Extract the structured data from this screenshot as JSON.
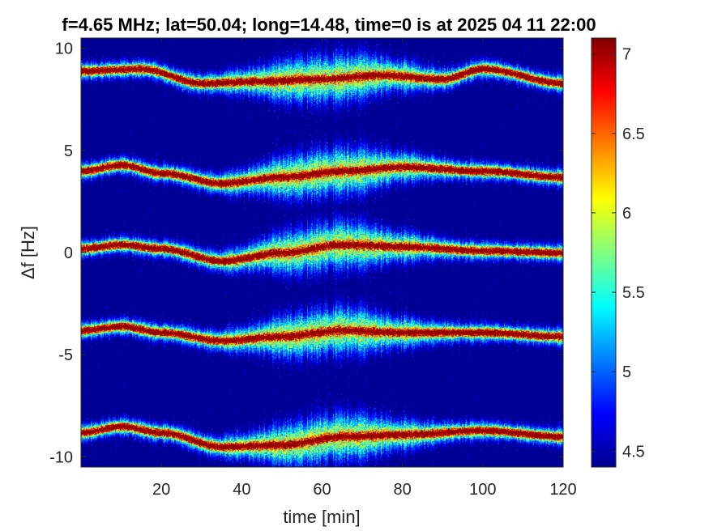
{
  "chart_data": {
    "type": "heatmap",
    "title": "f=4.65 MHz;  lat=50.04; long=14.48, time=0 is at 2025 04 11 22:00",
    "xlabel": "time [min]",
    "ylabel": "Δf [Hz]",
    "xlim": [
      0,
      120
    ],
    "ylim": [
      -10.5,
      10.5
    ],
    "xticks": [
      20,
      40,
      60,
      80,
      100,
      120
    ],
    "xtick_labels": [
      "20",
      "40",
      "60",
      "80",
      "100",
      "120"
    ],
    "yticks": [
      10,
      5,
      0,
      -5,
      -10
    ],
    "ytick_labels": [
      "10",
      "5",
      "0",
      "-5",
      "-10"
    ],
    "colorbar": {
      "limits": [
        4.4,
        7.1
      ],
      "ticks": [
        4.5,
        5,
        5.5,
        6,
        6.5,
        7
      ],
      "tick_labels": [
        "4.5",
        "5",
        "5.5",
        "6",
        "6.5",
        "7"
      ],
      "colormap": "jet"
    },
    "background_color": "#00008f",
    "bands": [
      {
        "center_hz": 8.9,
        "drift": [
          [
            0,
            0
          ],
          [
            15,
            0.1
          ],
          [
            30,
            -0.6
          ],
          [
            45,
            -0.5
          ],
          [
            60,
            -0.4
          ],
          [
            75,
            -0.2
          ],
          [
            90,
            -0.4
          ],
          [
            100,
            0.1
          ],
          [
            120,
            -0.6
          ]
        ]
      },
      {
        "center_hz": 4.0,
        "drift": [
          [
            0,
            0
          ],
          [
            10,
            0.3
          ],
          [
            20,
            -0.1
          ],
          [
            35,
            -0.6
          ],
          [
            50,
            -0.3
          ],
          [
            65,
            0
          ],
          [
            80,
            0.2
          ],
          [
            100,
            0
          ],
          [
            120,
            -0.3
          ]
        ]
      },
      {
        "center_hz": 0.2,
        "drift": [
          [
            0,
            0
          ],
          [
            10,
            0.2
          ],
          [
            20,
            0
          ],
          [
            35,
            -0.6
          ],
          [
            50,
            -0.2
          ],
          [
            65,
            0.2
          ],
          [
            80,
            0.1
          ],
          [
            100,
            -0.1
          ],
          [
            120,
            -0.2
          ]
        ]
      },
      {
        "center_hz": -4.0,
        "drift": [
          [
            0,
            0.2
          ],
          [
            10,
            0.4
          ],
          [
            20,
            0.1
          ],
          [
            35,
            -0.3
          ],
          [
            50,
            -0.1
          ],
          [
            65,
            0.2
          ],
          [
            80,
            0.1
          ],
          [
            100,
            0.1
          ],
          [
            120,
            -0.1
          ]
        ]
      },
      {
        "center_hz": -9.0,
        "drift": [
          [
            0,
            0.2
          ],
          [
            10,
            0.5
          ],
          [
            20,
            0.2
          ],
          [
            35,
            -0.5
          ],
          [
            50,
            -0.4
          ],
          [
            65,
            0
          ],
          [
            80,
            0.1
          ],
          [
            100,
            0.3
          ],
          [
            120,
            0
          ]
        ]
      }
    ]
  }
}
